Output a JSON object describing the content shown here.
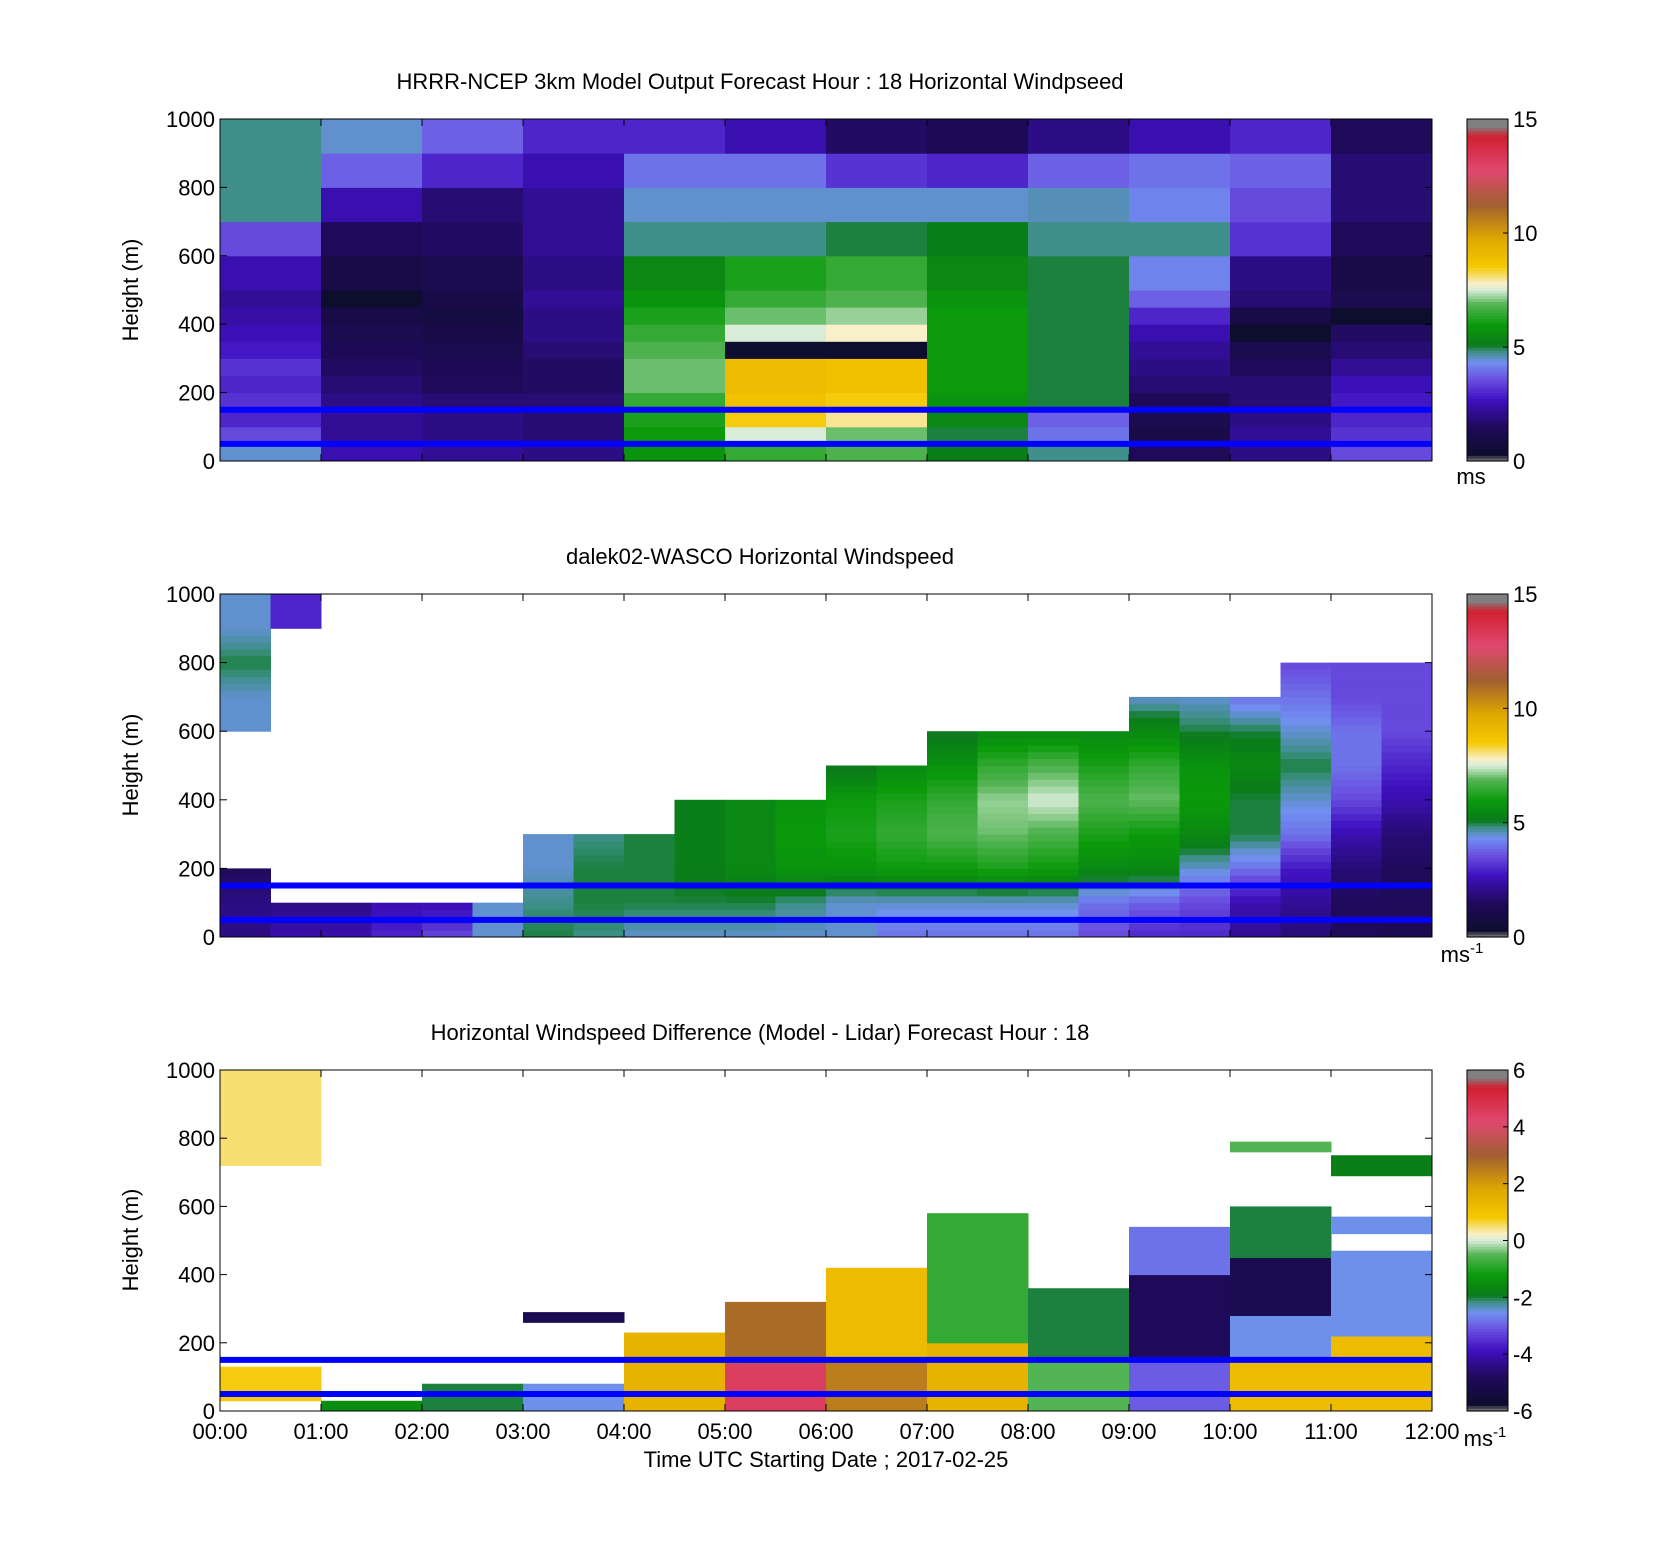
{
  "figure": {
    "xlabel": "Time UTC  Starting Date ; 2017-02-25",
    "x_ticks": [
      "00:00",
      "01:00",
      "02:00",
      "03:00",
      "04:00",
      "05:00",
      "06:00",
      "07:00",
      "08:00",
      "09:00",
      "10:00",
      "11:00",
      "12:00"
    ],
    "y_ticks": [
      "0",
      "200",
      "400",
      "600",
      "800",
      "1000"
    ],
    "ylabel": "Height (m)"
  },
  "colormaps": {
    "speed": [
      [
        0.0,
        "#808080"
      ],
      [
        0.02,
        "#0d0d2e"
      ],
      [
        0.1,
        "#1f0a5a"
      ],
      [
        0.18,
        "#3f10c0"
      ],
      [
        0.24,
        "#6a50e0"
      ],
      [
        0.29,
        "#7090f0"
      ],
      [
        0.32,
        "#3f8f8a"
      ],
      [
        0.34,
        "#0a7a1a"
      ],
      [
        0.4,
        "#0a9a0a"
      ],
      [
        0.46,
        "#55b555"
      ],
      [
        0.5,
        "#d8ecd8"
      ],
      [
        0.52,
        "#f8f0c8"
      ],
      [
        0.57,
        "#f5c800"
      ],
      [
        0.65,
        "#e0a800"
      ],
      [
        0.75,
        "#a06030"
      ],
      [
        0.85,
        "#e04870"
      ],
      [
        0.95,
        "#d02030"
      ],
      [
        0.98,
        "#808080"
      ],
      [
        1.0,
        "#808080"
      ]
    ],
    "diff": [
      [
        0.0,
        "#808080"
      ],
      [
        0.02,
        "#0d0d2e"
      ],
      [
        0.1,
        "#1f0a5a"
      ],
      [
        0.18,
        "#3f10c0"
      ],
      [
        0.24,
        "#6a50e0"
      ],
      [
        0.29,
        "#7090f0"
      ],
      [
        0.32,
        "#3f8f8a"
      ],
      [
        0.34,
        "#0a7a1a"
      ],
      [
        0.4,
        "#0a9a0a"
      ],
      [
        0.46,
        "#55b555"
      ],
      [
        0.5,
        "#d8ecd8"
      ],
      [
        0.52,
        "#f8f0c8"
      ],
      [
        0.57,
        "#f5c800"
      ],
      [
        0.65,
        "#e0a800"
      ],
      [
        0.75,
        "#a06030"
      ],
      [
        0.85,
        "#e04870"
      ],
      [
        0.95,
        "#d02030"
      ],
      [
        0.98,
        "#808080"
      ],
      [
        1.0,
        "#808080"
      ]
    ]
  },
  "chart_data": [
    {
      "type": "heatmap",
      "title": "HRRR-NCEP 3km Model Output   Forecast Hour : 18 Horizontal Windpseed",
      "xlabel": "",
      "ylabel": "Height (m)",
      "xlim": [
        0,
        12
      ],
      "ylim": [
        0,
        1000
      ],
      "units": "ms",
      "colorbar": {
        "min": 0,
        "max": 15,
        "ticks": [
          "0",
          "5",
          "10",
          "15"
        ],
        "cmap": "speed"
      },
      "reference_lines_m": [
        150,
        50
      ],
      "reference_line_color": "#0000ff",
      "hours": [
        0,
        1,
        2,
        3,
        4,
        5,
        6,
        7,
        8,
        9,
        10,
        11
      ],
      "levels_m": [
        0,
        50,
        100,
        150,
        200,
        250,
        300,
        350,
        400,
        450,
        500,
        600,
        700,
        800,
        900,
        1000
      ],
      "values": [
        [
          4.5,
          2.5,
          2.2,
          2.0,
          5.8,
          6.5,
          6.8,
          5.2,
          4.8,
          1.5,
          2.0,
          3.5
        ],
        [
          3.5,
          2.2,
          2.0,
          1.8,
          6.0,
          7.5,
          7.0,
          5.0,
          4.0,
          1.0,
          2.2,
          3.2
        ],
        [
          3.0,
          2.2,
          2.0,
          1.8,
          6.2,
          8.5,
          8.0,
          5.5,
          3.8,
          1.2,
          2.0,
          3.0
        ],
        [
          3.2,
          2.0,
          1.8,
          1.8,
          6.5,
          8.8,
          8.5,
          5.8,
          5.0,
          1.5,
          1.8,
          2.8
        ],
        [
          3.0,
          1.8,
          1.5,
          1.6,
          7.0,
          9.0,
          8.8,
          6.0,
          5.0,
          1.8,
          1.8,
          2.6
        ],
        [
          3.2,
          1.6,
          1.4,
          1.6,
          7.0,
          9.0,
          8.8,
          6.0,
          5.0,
          2.0,
          1.5,
          2.2
        ],
        [
          2.8,
          1.4,
          1.2,
          1.8,
          6.8,
          0.3,
          0.3,
          6.0,
          5.0,
          2.2,
          1.2,
          1.8
        ],
        [
          2.6,
          1.2,
          1.0,
          2.0,
          6.5,
          7.5,
          7.8,
          6.0,
          5.0,
          2.5,
          0.3,
          1.6
        ],
        [
          2.4,
          1.0,
          0.9,
          2.0,
          6.2,
          7.0,
          7.2,
          6.0,
          5.0,
          3.0,
          1.0,
          0.3
        ],
        [
          2.2,
          0.3,
          1.0,
          2.2,
          5.8,
          6.5,
          6.8,
          5.8,
          5.0,
          3.8,
          1.8,
          1.2
        ],
        [
          2.5,
          1.0,
          1.2,
          2.0,
          5.5,
          6.2,
          6.5,
          5.5,
          5.0,
          4.2,
          2.0,
          1.0
        ],
        [
          3.5,
          1.5,
          1.6,
          2.2,
          4.8,
          4.8,
          5.0,
          5.2,
          4.8,
          4.8,
          3.2,
          1.5
        ],
        [
          4.8,
          2.5,
          1.8,
          2.2,
          4.5,
          4.5,
          4.5,
          4.5,
          4.6,
          4.2,
          3.5,
          1.8
        ],
        [
          4.8,
          3.8,
          3.0,
          2.5,
          4.0,
          4.0,
          3.2,
          3.0,
          3.8,
          4.0,
          3.8,
          1.8
        ],
        [
          4.8,
          4.5,
          3.8,
          3.0,
          3.0,
          2.5,
          1.6,
          1.4,
          2.0,
          2.5,
          3.0,
          1.5
        ]
      ]
    },
    {
      "type": "heatmap",
      "title": "dalek02-WASCO  Horizontal Windspeed",
      "xlabel": "",
      "ylabel": "Height (m)",
      "xlim": [
        0,
        12
      ],
      "ylim": [
        0,
        1000
      ],
      "units": "ms-1",
      "colorbar": {
        "min": 0,
        "max": 15,
        "ticks": [
          "0",
          "5",
          "10",
          "15"
        ],
        "cmap": "speed"
      },
      "reference_lines_m": [
        150,
        50
      ],
      "reference_line_color": "#0000ff",
      "profile_times_h": [
        0,
        0.5,
        1,
        1.5,
        2,
        2.5,
        3,
        3.5,
        4,
        4.5,
        5,
        5.5,
        6,
        6.5,
        7,
        7.5,
        8,
        8.5,
        9,
        9.5,
        10,
        10.5,
        11,
        11.5,
        12
      ],
      "profile_heights_m": [
        0,
        100,
        200,
        300,
        400,
        500,
        600,
        700,
        800,
        900,
        1000
      ],
      "profiles": [
        [
          2.0,
          2.0,
          1.5,
          null,
          null,
          null,
          4.5,
          4.5,
          5.0,
          4.5,
          4.5
        ],
        [
          2.5,
          2.0,
          null,
          null,
          null,
          null,
          null,
          null,
          null,
          3.0,
          3.0
        ],
        [
          2.5,
          2.0,
          null,
          null,
          null,
          null,
          null,
          null,
          null,
          null,
          null
        ],
        [
          3.0,
          2.5,
          null,
          null,
          null,
          null,
          null,
          null,
          null,
          null,
          null
        ],
        [
          3.5,
          2.5,
          null,
          null,
          null,
          null,
          null,
          null,
          null,
          null,
          null
        ],
        [
          4.5,
          4.5,
          null,
          null,
          null,
          null,
          null,
          null,
          null,
          null,
          null
        ],
        [
          5.0,
          4.8,
          4.5,
          4.5,
          null,
          null,
          null,
          null,
          null,
          null,
          null
        ],
        [
          4.8,
          5.0,
          5.0,
          4.8,
          null,
          null,
          null,
          null,
          null,
          null,
          null
        ],
        [
          4.5,
          5.0,
          5.0,
          5.0,
          null,
          null,
          null,
          null,
          null,
          null,
          null
        ],
        [
          4.5,
          5.0,
          5.2,
          5.2,
          5.2,
          null,
          null,
          null,
          null,
          null,
          null
        ],
        [
          4.5,
          5.0,
          5.5,
          5.5,
          5.5,
          null,
          null,
          null,
          null,
          null,
          null
        ],
        [
          4.5,
          4.8,
          5.8,
          6.0,
          5.8,
          null,
          null,
          null,
          null,
          null,
          null
        ],
        [
          4.5,
          4.5,
          5.8,
          6.2,
          6.0,
          5.0,
          null,
          null,
          null,
          null,
          null
        ],
        [
          4.0,
          4.5,
          6.0,
          6.5,
          6.2,
          5.5,
          null,
          null,
          null,
          null,
          null
        ],
        [
          4.0,
          4.5,
          6.0,
          6.8,
          6.5,
          5.8,
          5.0,
          null,
          null,
          null,
          null
        ],
        [
          4.0,
          4.5,
          6.2,
          7.0,
          7.2,
          6.5,
          5.5,
          null,
          null,
          null,
          null
        ],
        [
          4.0,
          4.5,
          6.0,
          6.8,
          7.5,
          6.8,
          5.5,
          null,
          null,
          null,
          null
        ],
        [
          3.5,
          4.0,
          5.5,
          6.2,
          6.8,
          6.2,
          5.5,
          null,
          null,
          null,
          null
        ],
        [
          3.0,
          3.8,
          5.5,
          6.0,
          7.0,
          6.5,
          5.5,
          4.5,
          null,
          null,
          null
        ],
        [
          3.0,
          3.5,
          4.5,
          5.5,
          6.0,
          5.8,
          5.0,
          4.5,
          null,
          null,
          null
        ],
        [
          2.2,
          2.5,
          4.0,
          5.0,
          5.0,
          5.5,
          5.0,
          4.0,
          null,
          null,
          null
        ],
        [
          1.8,
          2.2,
          2.8,
          4.0,
          4.5,
          5.0,
          4.5,
          4.0,
          3.5,
          null,
          null
        ],
        [
          1.5,
          1.5,
          1.8,
          2.5,
          3.5,
          4.0,
          4.0,
          3.5,
          3.5,
          null,
          null
        ],
        [
          1.2,
          1.5,
          1.5,
          1.8,
          2.5,
          3.0,
          3.5,
          3.5,
          3.5,
          null,
          null
        ],
        [
          1.8,
          1.8,
          1.2,
          1.5,
          2.0,
          2.5,
          2.8,
          2.5,
          null,
          null,
          null
        ]
      ]
    },
    {
      "type": "heatmap",
      "title": "Horizontal Windspeed Difference (Model - Lidar) Forecast Hour : 18",
      "xlabel": "Time UTC  Starting Date ; 2017-02-25",
      "ylabel": "Height (m)",
      "xlim": [
        0,
        12
      ],
      "ylim": [
        0,
        1000
      ],
      "units": "ms-1",
      "colorbar": {
        "min": -6,
        "max": 6,
        "ticks": [
          "-6",
          "-4",
          "-2",
          "0",
          "2",
          "4",
          "6"
        ],
        "cmap": "diff"
      },
      "reference_lines_m": [
        150,
        50
      ],
      "reference_line_color": "#0000ff",
      "blocks": [
        {
          "hour": 0,
          "bottom": 30,
          "top": 130,
          "value": 0.8
        },
        {
          "hour": 0,
          "bottom": 720,
          "top": 1000,
          "value": 0.5
        },
        {
          "hour": 1,
          "bottom": 0,
          "top": 30,
          "value": -1.5
        },
        {
          "hour": 2,
          "bottom": 0,
          "top": 80,
          "value": -2.0
        },
        {
          "hour": 3,
          "bottom": 0,
          "top": 80,
          "value": -2.5
        },
        {
          "hour": 3,
          "bottom": 260,
          "top": 290,
          "value": -5.0
        },
        {
          "hour": 4,
          "bottom": 0,
          "top": 230,
          "value": 1.5
        },
        {
          "hour": 5,
          "bottom": 0,
          "top": 140,
          "value": 4.5
        },
        {
          "hour": 5,
          "bottom": 140,
          "top": 320,
          "value": 2.8
        },
        {
          "hour": 6,
          "bottom": 0,
          "top": 150,
          "value": 2.5
        },
        {
          "hour": 6,
          "bottom": 150,
          "top": 420,
          "value": 1.2
        },
        {
          "hour": 7,
          "bottom": 0,
          "top": 200,
          "value": 1.5
        },
        {
          "hour": 7,
          "bottom": 200,
          "top": 580,
          "value": -0.8
        },
        {
          "hour": 8,
          "bottom": 0,
          "top": 150,
          "value": -0.5
        },
        {
          "hour": 8,
          "bottom": 150,
          "top": 360,
          "value": -2.0
        },
        {
          "hour": 9,
          "bottom": 0,
          "top": 150,
          "value": -3.0
        },
        {
          "hour": 9,
          "bottom": 150,
          "top": 400,
          "value": -4.8
        },
        {
          "hour": 9,
          "bottom": 400,
          "top": 540,
          "value": -2.8
        },
        {
          "hour": 10,
          "bottom": 0,
          "top": 150,
          "value": 1.2
        },
        {
          "hour": 10,
          "bottom": 150,
          "top": 280,
          "value": -2.5
        },
        {
          "hour": 10,
          "bottom": 280,
          "top": 450,
          "value": -5.0
        },
        {
          "hour": 10,
          "bottom": 450,
          "top": 600,
          "value": -2.0
        },
        {
          "hour": 10,
          "bottom": 760,
          "top": 790,
          "value": -0.5
        },
        {
          "hour": 11,
          "bottom": 0,
          "top": 220,
          "value": 1.2
        },
        {
          "hour": 11,
          "bottom": 220,
          "top": 470,
          "value": -2.5
        },
        {
          "hour": 11,
          "bottom": 520,
          "top": 570,
          "value": -2.5
        },
        {
          "hour": 11,
          "bottom": 690,
          "top": 750,
          "value": -1.8
        }
      ]
    }
  ]
}
